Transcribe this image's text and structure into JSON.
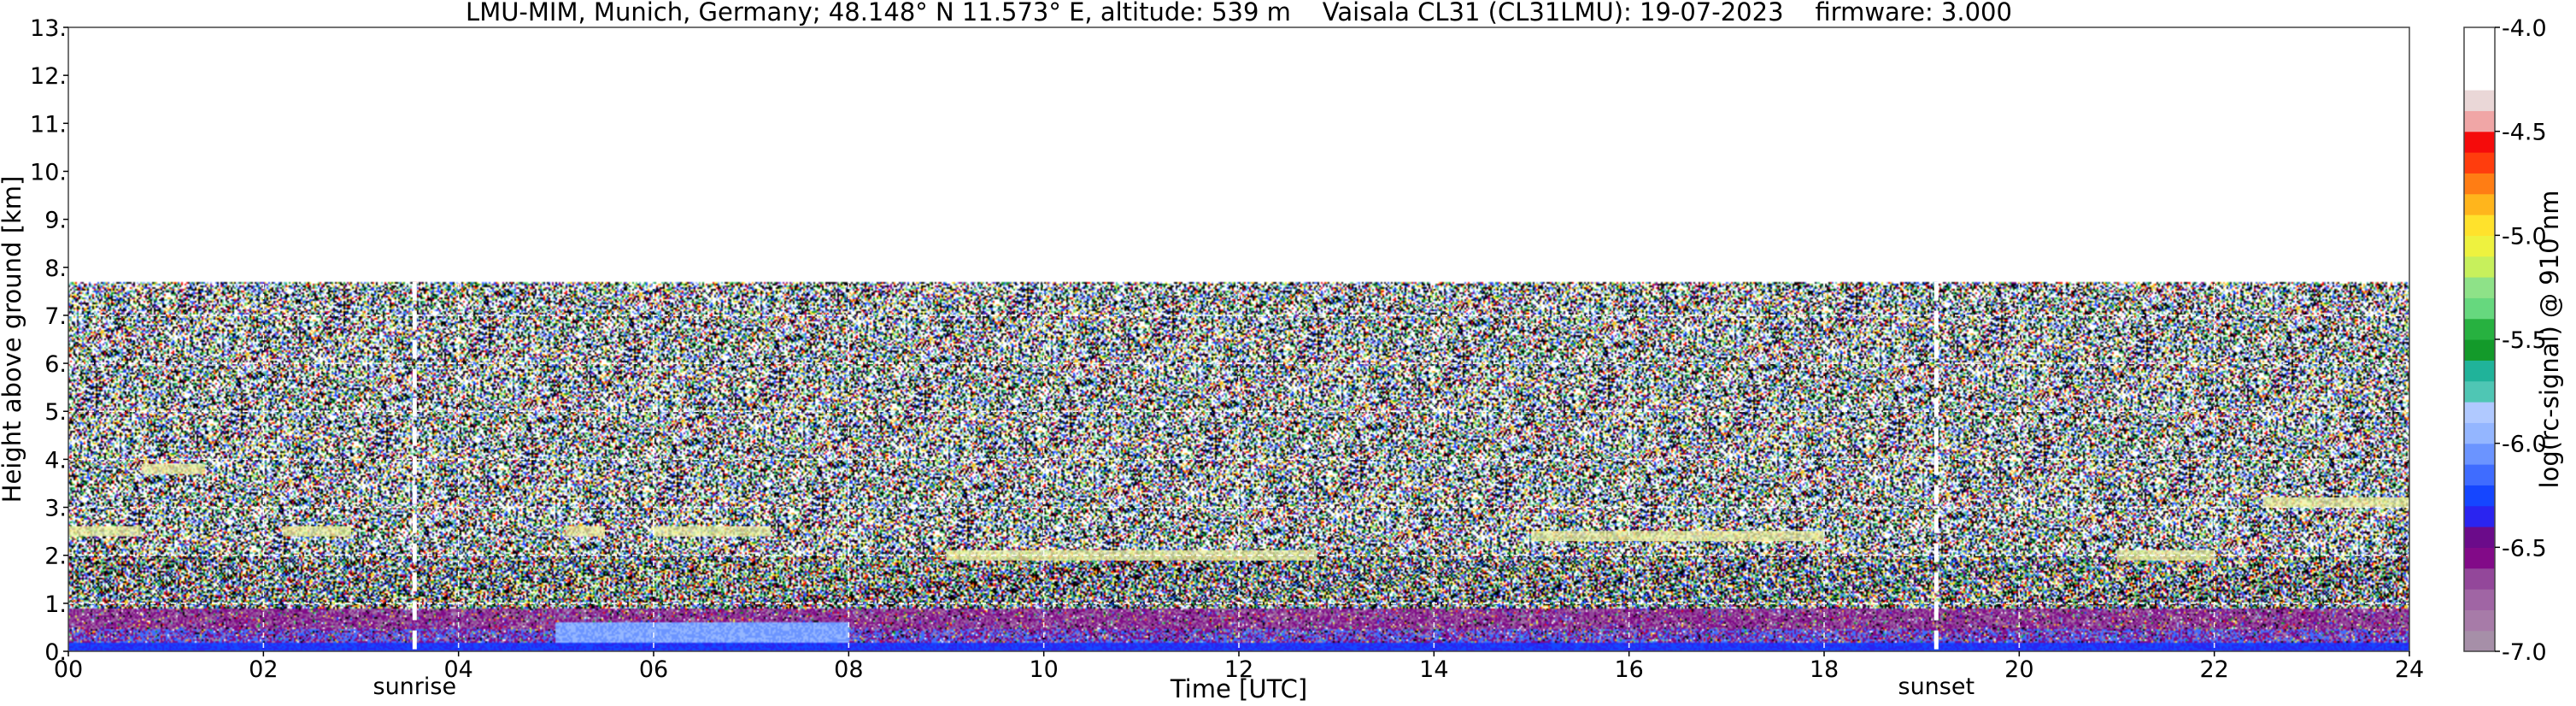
{
  "chart_data": {
    "type": "heatmap",
    "title": "LMU-MIM, Munich, Germany; 48.148° N 11.573° E, altitude: 539 m    Vaisala CL31 (CL31LMU): 19-07-2023    firmware: 3.000",
    "xlabel": "Time [UTC]",
    "ylabel": "Height above ground [km]",
    "xlim": [
      0,
      24
    ],
    "ylim": [
      0,
      13
    ],
    "x_ticks": [
      {
        "value": 0,
        "label": "00"
      },
      {
        "value": 2,
        "label": "02"
      },
      {
        "value": 4,
        "label": "04"
      },
      {
        "value": 6,
        "label": "06"
      },
      {
        "value": 8,
        "label": "08"
      },
      {
        "value": 10,
        "label": "10"
      },
      {
        "value": 12,
        "label": "12"
      },
      {
        "value": 14,
        "label": "14"
      },
      {
        "value": 16,
        "label": "16"
      },
      {
        "value": 18,
        "label": "18"
      },
      {
        "value": 20,
        "label": "20"
      },
      {
        "value": 22,
        "label": "22"
      },
      {
        "value": 24,
        "label": "24"
      }
    ],
    "y_ticks": [
      {
        "value": 0,
        "label": "0."
      },
      {
        "value": 1,
        "label": "1."
      },
      {
        "value": 2,
        "label": "2."
      },
      {
        "value": 3,
        "label": "3."
      },
      {
        "value": 4,
        "label": "4."
      },
      {
        "value": 5,
        "label": "5."
      },
      {
        "value": 6,
        "label": "6."
      },
      {
        "value": 7,
        "label": "7."
      },
      {
        "value": 8,
        "label": "8."
      },
      {
        "value": 9,
        "label": "9."
      },
      {
        "value": 10,
        "label": "10."
      },
      {
        "value": 11,
        "label": "11."
      },
      {
        "value": 12,
        "label": "12."
      },
      {
        "value": 13,
        "label": "13."
      }
    ],
    "grid": true,
    "data_top_height_km": 7.7,
    "markers": [
      {
        "time": 3.55,
        "label": "sunrise"
      },
      {
        "time": 19.15,
        "label": "sunset"
      }
    ],
    "aerosol_layer_top_km": 0.9,
    "cloud_features": [
      {
        "time_start": 0.0,
        "time_end": 0.75,
        "height_km": 2.5
      },
      {
        "time_start": 0.75,
        "time_end": 1.4,
        "height_km": 3.8
      },
      {
        "time_start": 2.2,
        "time_end": 2.9,
        "height_km": 2.5
      },
      {
        "time_start": 5.1,
        "time_end": 5.5,
        "height_km": 2.5
      },
      {
        "time_start": 6.0,
        "time_end": 7.2,
        "height_km": 2.5
      },
      {
        "time_start": 9.0,
        "time_end": 12.8,
        "height_km": 2.0
      },
      {
        "time_start": 15.0,
        "time_end": 18.0,
        "height_km": 2.4
      },
      {
        "time_start": 21.0,
        "time_end": 22.0,
        "height_km": 2.0
      },
      {
        "time_start": 22.5,
        "time_end": 24.0,
        "height_km": 3.1
      }
    ],
    "colorbar": {
      "label": "log(rc-signal) @ 910 nm",
      "min": -7.0,
      "max": -4.0,
      "tick_values": [
        -7.0,
        -6.5,
        -6.0,
        -5.5,
        -5.0,
        -4.5,
        -4.0
      ],
      "tick_labels": [
        "-7.0",
        "-6.5",
        "-6.0",
        "-5.5",
        "-5.0",
        "-4.5",
        "-4.0"
      ],
      "colors": [
        "#a68fa8",
        "#a77ba8",
        "#a065a4",
        "#93479a",
        "#820a88",
        "#6b0b8a",
        "#2a24f0",
        "#1546ff",
        "#3f6cff",
        "#6b94ff",
        "#94b6ff",
        "#b0c9ff",
        "#4fc6b4",
        "#20b39a",
        "#139a2a",
        "#27b140",
        "#66d87e",
        "#8ee288",
        "#c7f05c",
        "#eef23f",
        "#ffe22c",
        "#ffb51c",
        "#ff7d14",
        "#ff3d0d",
        "#f50b0b",
        "#f0a6a6",
        "#ead7d7",
        "#ffffff",
        "#ffffff",
        "#ffffff"
      ]
    }
  }
}
